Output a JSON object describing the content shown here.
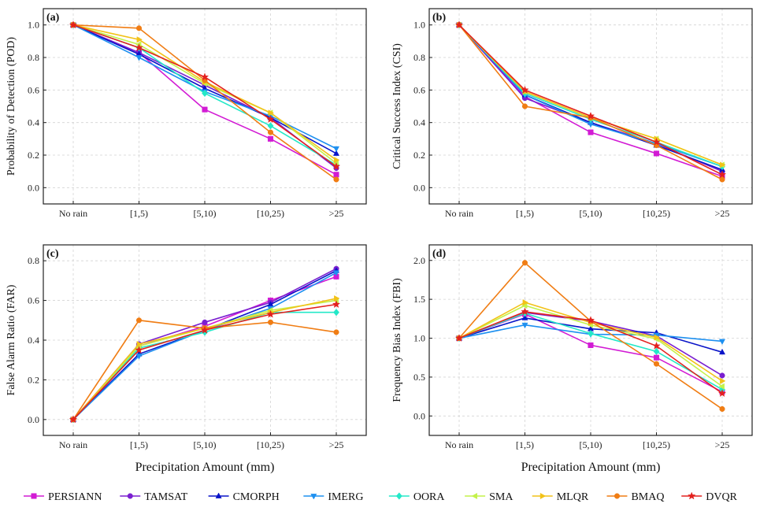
{
  "figure": {
    "categories": [
      "No rain",
      "[1,5)",
      "[5,10)",
      "[10,25)",
      ">25"
    ],
    "series_styles": [
      {
        "name": "PERSIANN",
        "color": "#d21bd4",
        "marker": "square"
      },
      {
        "name": "TAMSAT",
        "color": "#7a1fd0",
        "marker": "circle"
      },
      {
        "name": "CMORPH",
        "color": "#0a14c8",
        "marker": "triangle-up"
      },
      {
        "name": "IMERG",
        "color": "#1e90f0",
        "marker": "triangle-down"
      },
      {
        "name": "OORA",
        "color": "#24e8c8",
        "marker": "diamond"
      },
      {
        "name": "SMA",
        "color": "#c4f24a",
        "marker": "triangle-left"
      },
      {
        "name": "MLQR",
        "color": "#f2c218",
        "marker": "triangle-right"
      },
      {
        "name": "BMAQ",
        "color": "#f07d14",
        "marker": "circle"
      },
      {
        "name": "DVQR",
        "color": "#e3211e",
        "marker": "star"
      }
    ]
  },
  "chart_data": [
    {
      "type": "line",
      "panel_label": "(a)",
      "ylabel": "Probability of Detection (POD)",
      "xlabel": "",
      "categories": [
        "No rain",
        "[1,5)",
        "[5,10)",
        "[10,25)",
        ">25"
      ],
      "ylim": [
        -0.1,
        1.1
      ],
      "yticks": [
        "0.0",
        "0.2",
        "0.4",
        "0.6",
        "0.8",
        "1.0"
      ],
      "grid": true,
      "series": [
        {
          "name": "PERSIANN",
          "values": [
            1.0,
            0.83,
            0.48,
            0.3,
            0.08
          ]
        },
        {
          "name": "TAMSAT",
          "values": [
            1.0,
            0.83,
            0.63,
            0.43,
            0.12
          ]
        },
        {
          "name": "CMORPH",
          "values": [
            1.0,
            0.82,
            0.61,
            0.43,
            0.21
          ]
        },
        {
          "name": "IMERG",
          "values": [
            1.0,
            0.8,
            0.59,
            0.44,
            0.24
          ]
        },
        {
          "name": "OORA",
          "values": [
            1.0,
            0.86,
            0.58,
            0.38,
            0.14
          ]
        },
        {
          "name": "SMA",
          "values": [
            1.0,
            0.88,
            0.64,
            0.46,
            0.15
          ]
        },
        {
          "name": "MLQR",
          "values": [
            1.0,
            0.91,
            0.65,
            0.46,
            0.17
          ]
        },
        {
          "name": "BMAQ",
          "values": [
            1.0,
            0.98,
            0.66,
            0.34,
            0.05
          ]
        },
        {
          "name": "DVQR",
          "values": [
            1.0,
            0.86,
            0.68,
            0.42,
            0.13
          ]
        }
      ]
    },
    {
      "type": "line",
      "panel_label": "(b)",
      "ylabel": "Critical Success Index (CSI)",
      "xlabel": "",
      "categories": [
        "No rain",
        "[1,5)",
        "[5,10)",
        "[10,25)",
        ">25"
      ],
      "ylim": [
        -0.1,
        1.1
      ],
      "yticks": [
        "0.0",
        "0.2",
        "0.4",
        "0.6",
        "0.8",
        "1.0"
      ],
      "grid": true,
      "series": [
        {
          "name": "PERSIANN",
          "values": [
            1.0,
            0.56,
            0.34,
            0.21,
            0.07
          ]
        },
        {
          "name": "TAMSAT",
          "values": [
            1.0,
            0.55,
            0.4,
            0.27,
            0.1
          ]
        },
        {
          "name": "CMORPH",
          "values": [
            1.0,
            0.57,
            0.4,
            0.26,
            0.11
          ]
        },
        {
          "name": "IMERG",
          "values": [
            1.0,
            0.57,
            0.39,
            0.27,
            0.13
          ]
        },
        {
          "name": "OORA",
          "values": [
            1.0,
            0.58,
            0.42,
            0.28,
            0.13
          ]
        },
        {
          "name": "SMA",
          "values": [
            1.0,
            0.59,
            0.43,
            0.3,
            0.14
          ]
        },
        {
          "name": "MLQR",
          "values": [
            1.0,
            0.59,
            0.43,
            0.3,
            0.14
          ]
        },
        {
          "name": "BMAQ",
          "values": [
            1.0,
            0.5,
            0.43,
            0.26,
            0.05
          ]
        },
        {
          "name": "DVQR",
          "values": [
            1.0,
            0.6,
            0.44,
            0.28,
            0.08
          ]
        }
      ]
    },
    {
      "type": "line",
      "panel_label": "(c)",
      "ylabel": "False Alarm Ratio (FAR)",
      "xlabel": "Precipitation Amount (mm)",
      "categories": [
        "No rain",
        "[1,5)",
        "[5,10)",
        "[10,25)",
        ">25"
      ],
      "ylim": [
        -0.08,
        0.88
      ],
      "yticks": [
        "0.0",
        "0.2",
        "0.4",
        "0.6",
        "0.8"
      ],
      "grid": true,
      "series": [
        {
          "name": "PERSIANN",
          "values": [
            0.0,
            0.37,
            0.47,
            0.6,
            0.72
          ]
        },
        {
          "name": "TAMSAT",
          "values": [
            0.0,
            0.38,
            0.49,
            0.59,
            0.76
          ]
        },
        {
          "name": "CMORPH",
          "values": [
            0.0,
            0.33,
            0.45,
            0.58,
            0.75
          ]
        },
        {
          "name": "IMERG",
          "values": [
            0.0,
            0.32,
            0.45,
            0.56,
            0.74
          ]
        },
        {
          "name": "OORA",
          "values": [
            0.0,
            0.36,
            0.44,
            0.54,
            0.54
          ]
        },
        {
          "name": "SMA",
          "values": [
            0.0,
            0.37,
            0.46,
            0.55,
            0.6
          ]
        },
        {
          "name": "MLQR",
          "values": [
            0.0,
            0.38,
            0.46,
            0.54,
            0.61
          ]
        },
        {
          "name": "BMAQ",
          "values": [
            0.0,
            0.5,
            0.46,
            0.49,
            0.44
          ]
        },
        {
          "name": "DVQR",
          "values": [
            0.0,
            0.35,
            0.45,
            0.53,
            0.58
          ]
        }
      ]
    },
    {
      "type": "line",
      "panel_label": "(d)",
      "ylabel": "Frequency Bias Index (FBI)",
      "xlabel": "Precipitation Amount (mm)",
      "categories": [
        "No rain",
        "[1,5)",
        "[5,10)",
        "[10,25)",
        ">25"
      ],
      "ylim": [
        -0.25,
        2.2
      ],
      "yticks": [
        "0.0",
        "0.5",
        "1.0",
        "1.5",
        "2.0"
      ],
      "grid": true,
      "series": [
        {
          "name": "PERSIANN",
          "values": [
            1.0,
            1.31,
            0.91,
            0.75,
            0.31
          ]
        },
        {
          "name": "TAMSAT",
          "values": [
            1.0,
            1.33,
            1.22,
            1.03,
            0.52
          ]
        },
        {
          "name": "CMORPH",
          "values": [
            1.0,
            1.26,
            1.12,
            1.07,
            0.82
          ]
        },
        {
          "name": "IMERG",
          "values": [
            1.0,
            1.17,
            1.05,
            1.04,
            0.96
          ]
        },
        {
          "name": "OORA",
          "values": [
            1.0,
            1.32,
            1.06,
            0.83,
            0.34
          ]
        },
        {
          "name": "SMA",
          "values": [
            1.0,
            1.42,
            1.17,
            0.99,
            0.38
          ]
        },
        {
          "name": "MLQR",
          "values": [
            1.0,
            1.46,
            1.2,
            1.01,
            0.45
          ]
        },
        {
          "name": "BMAQ",
          "values": [
            1.0,
            1.97,
            1.22,
            0.67,
            0.09
          ]
        },
        {
          "name": "DVQR",
          "values": [
            1.0,
            1.34,
            1.23,
            0.9,
            0.29
          ]
        }
      ]
    }
  ]
}
